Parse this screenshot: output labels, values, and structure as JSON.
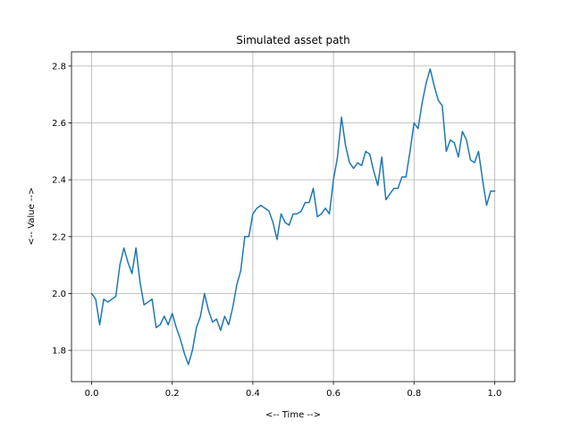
{
  "chart_data": {
    "type": "line",
    "title": "Simulated asset path",
    "xlabel": "<-- Time -->",
    "ylabel": "<-- Value -->",
    "xlim": [
      -0.05,
      1.05
    ],
    "ylim": [
      1.69,
      2.85
    ],
    "grid": true,
    "x_ticks": [
      0.0,
      0.2,
      0.4,
      0.6,
      0.8,
      1.0
    ],
    "x_tick_labels": [
      "0.0",
      "0.2",
      "0.4",
      "0.6",
      "0.8",
      "1.0"
    ],
    "y_ticks": [
      1.8,
      2.0,
      2.2,
      2.4,
      2.6,
      2.8
    ],
    "y_tick_labels": [
      "1.8",
      "2.0",
      "2.2",
      "2.4",
      "2.6",
      "2.8"
    ],
    "line_color": "#1f77b4",
    "series": [
      {
        "x": [
          0.0,
          0.01,
          0.02,
          0.03,
          0.04,
          0.05,
          0.06,
          0.07,
          0.08,
          0.09,
          0.1,
          0.11,
          0.12,
          0.13,
          0.14,
          0.15,
          0.16,
          0.17,
          0.18,
          0.19,
          0.2,
          0.21,
          0.22,
          0.23,
          0.24,
          0.25,
          0.26,
          0.27,
          0.28,
          0.29,
          0.3,
          0.31,
          0.32,
          0.33,
          0.34,
          0.35,
          0.36,
          0.37,
          0.38,
          0.39,
          0.4,
          0.41,
          0.42,
          0.43,
          0.44,
          0.45,
          0.46,
          0.47,
          0.48,
          0.49,
          0.5,
          0.51,
          0.52,
          0.53,
          0.54,
          0.55,
          0.56,
          0.57,
          0.58,
          0.59,
          0.6,
          0.61,
          0.62,
          0.63,
          0.64,
          0.65,
          0.66,
          0.67,
          0.68,
          0.69,
          0.7,
          0.71,
          0.72,
          0.73,
          0.74,
          0.75,
          0.76,
          0.77,
          0.78,
          0.79,
          0.8,
          0.81,
          0.82,
          0.83,
          0.84,
          0.85,
          0.86,
          0.87,
          0.88,
          0.89,
          0.9,
          0.91,
          0.92,
          0.93,
          0.94,
          0.95,
          0.96,
          0.97,
          0.98,
          0.99,
          1.0
        ],
        "values": [
          2.0,
          1.98,
          1.89,
          1.98,
          1.97,
          1.98,
          1.99,
          2.1,
          2.16,
          2.11,
          2.07,
          2.16,
          2.04,
          1.96,
          1.97,
          1.98,
          1.88,
          1.89,
          1.92,
          1.89,
          1.93,
          1.88,
          1.84,
          1.79,
          1.75,
          1.8,
          1.88,
          1.92,
          2.0,
          1.94,
          1.9,
          1.91,
          1.87,
          1.92,
          1.89,
          1.95,
          2.03,
          2.08,
          2.2,
          2.2,
          2.28,
          2.3,
          2.31,
          2.3,
          2.29,
          2.25,
          2.19,
          2.28,
          2.25,
          2.24,
          2.28,
          2.28,
          2.29,
          2.32,
          2.32,
          2.37,
          2.27,
          2.28,
          2.3,
          2.28,
          2.4,
          2.48,
          2.62,
          2.52,
          2.46,
          2.44,
          2.46,
          2.45,
          2.5,
          2.49,
          2.43,
          2.38,
          2.48,
          2.33,
          2.35,
          2.37,
          2.37,
          2.41,
          2.41,
          2.5,
          2.6,
          2.58,
          2.67,
          2.74,
          2.79,
          2.73,
          2.68,
          2.66,
          2.5,
          2.54,
          2.53,
          2.48,
          2.57,
          2.54,
          2.47,
          2.46,
          2.5,
          2.4,
          2.31,
          2.36,
          2.36
        ]
      }
    ]
  }
}
